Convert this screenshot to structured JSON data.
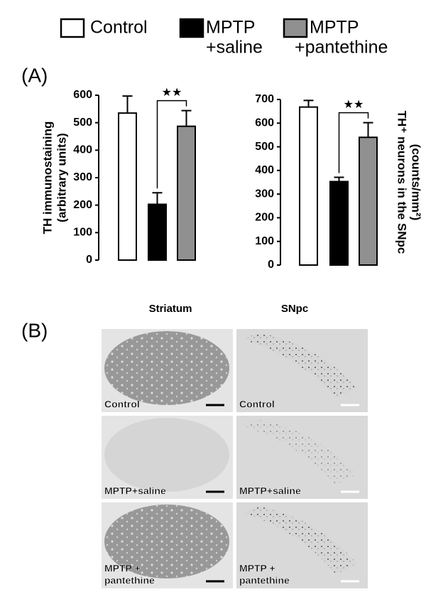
{
  "legend": [
    {
      "label": [
        "Control"
      ]
    },
    {
      "label": [
        "MPTP",
        "+saline"
      ]
    },
    {
      "label": [
        "MPTP",
        "+pantethine"
      ]
    }
  ],
  "panels": {
    "a": "(A)",
    "b": "(B)"
  },
  "chart_data": [
    {
      "type": "bar",
      "ylabel": [
        "TH immunostaining",
        "(arbitrary units)"
      ],
      "categories": [
        null,
        null,
        null
      ],
      "values": [
        535,
        203,
        487
      ],
      "errors": [
        62,
        42,
        57
      ],
      "colors": [
        "#ffffff",
        "#000000",
        "#909090"
      ],
      "ylim": [
        0,
        600
      ],
      "yticks": [
        0,
        100,
        200,
        300,
        400,
        500,
        600
      ],
      "annotation": "★★"
    },
    {
      "type": "bar",
      "ylabel": [
        "TH⁺ neurons in the SNpc",
        "(counts/mm²)"
      ],
      "categories": [
        null,
        null,
        null
      ],
      "values": [
        668,
        353,
        540
      ],
      "errors": [
        28,
        18,
        62
      ],
      "colors": [
        "#ffffff",
        "#000000",
        "#909090"
      ],
      "ylim": [
        0,
        700
      ],
      "yticks": [
        0,
        100,
        200,
        300,
        400,
        500,
        600,
        700
      ],
      "annotation": "★★"
    }
  ],
  "micrographs": {
    "columns": [
      "Striatum",
      "SNpc"
    ],
    "rows": [
      [
        [
          "Control"
        ],
        [
          "Control"
        ]
      ],
      [
        [
          "MPTP+saline"
        ],
        [
          "MPTP+saline"
        ]
      ],
      [
        [
          "MPTP +",
          "pantethine"
        ],
        [
          "MPTP +",
          "pantethine"
        ]
      ]
    ]
  }
}
